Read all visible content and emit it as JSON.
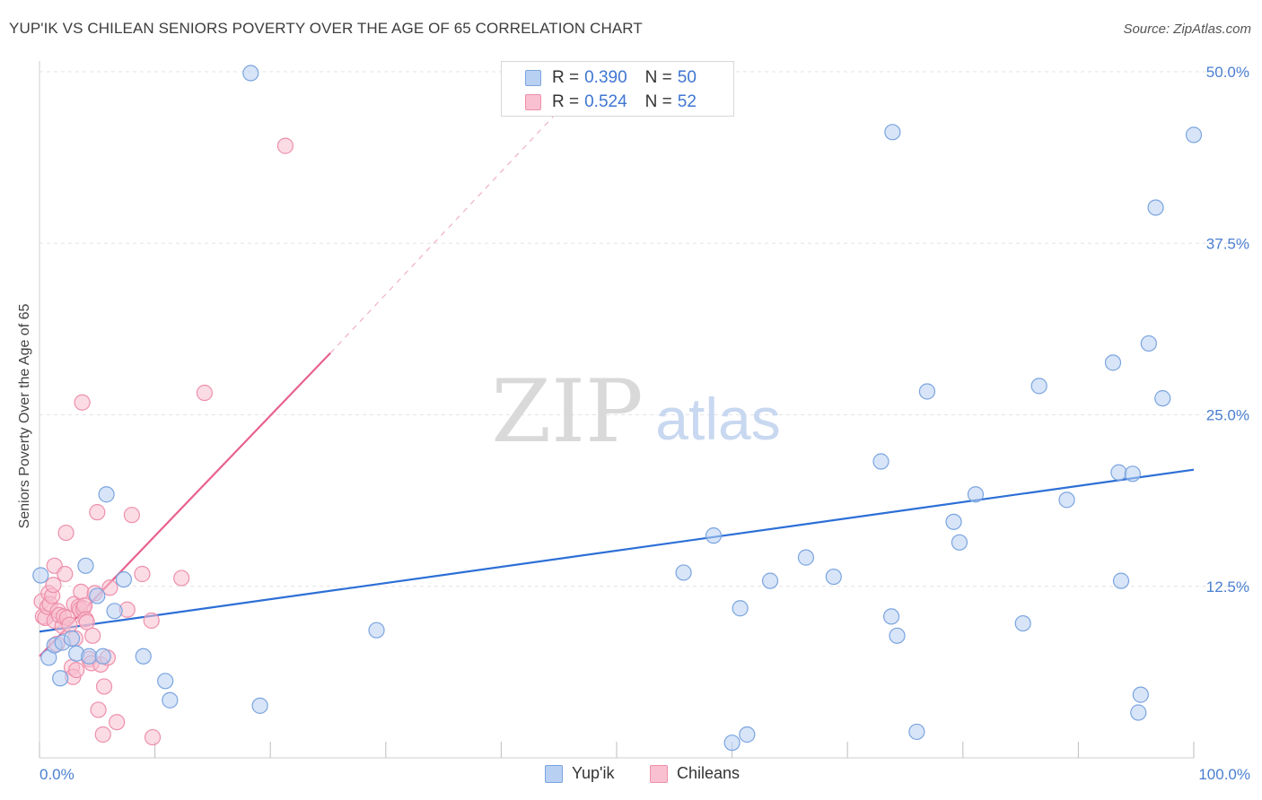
{
  "header": {
    "title": "YUP'IK VS CHILEAN SENIORS POVERTY OVER THE AGE OF 65 CORRELATION CHART",
    "source": "Source: ZipAtlas.com"
  },
  "watermark": {
    "zip": "ZIP",
    "atlas": "atlas"
  },
  "legend": {
    "yupik": {
      "r_label": "R =",
      "r_value": "0.390",
      "n_label": "N =",
      "n_value": "50"
    },
    "chileans": {
      "r_label": "R =",
      "r_value": "0.524",
      "n_label": "N =",
      "n_value": "52"
    }
  },
  "bottom_legend": {
    "yupik": "Yup'ik",
    "chileans": "Chileans"
  },
  "colors": {
    "yupik_fill": "#b8d0f2",
    "yupik_stroke": "#7aa4e0",
    "yupik_line": "#2c6fd6",
    "chile_fill": "#f8c0d0",
    "chile_stroke": "#ee8fab",
    "chile_line": "#e8628e",
    "tick_text": "#4a7fd0",
    "grid": "#e3e3e3"
  },
  "chart_data": {
    "type": "scatter",
    "title": "YUP'IK VS CHILEAN SENIORS POVERTY OVER THE AGE OF 65 CORRELATION CHART",
    "xlabel": "",
    "ylabel": "Seniors Poverty Over the Age of 65",
    "xlim": [
      0,
      100
    ],
    "ylim": [
      0,
      50
    ],
    "x_tick_labels": [
      "0.0%",
      "100.0%"
    ],
    "y_ticks": [
      12.5,
      25.0,
      37.5,
      50.0
    ],
    "y_tick_labels": [
      "12.5%",
      "25.0%",
      "37.5%",
      "50.0%"
    ],
    "grid": true,
    "series": [
      {
        "name": "Yup'ik",
        "points": [
          [
            0.1,
            13.3
          ],
          [
            0.8,
            7.3
          ],
          [
            1.8,
            5.8
          ],
          [
            1.3,
            8.2
          ],
          [
            2.0,
            8.4
          ],
          [
            2.8,
            8.7
          ],
          [
            3.2,
            7.6
          ],
          [
            4.0,
            14.0
          ],
          [
            4.3,
            7.4
          ],
          [
            5.0,
            11.8
          ],
          [
            5.5,
            7.4
          ],
          [
            5.8,
            19.2
          ],
          [
            6.5,
            10.7
          ],
          [
            7.3,
            13.0
          ],
          [
            9.0,
            7.4
          ],
          [
            10.9,
            5.6
          ],
          [
            11.3,
            4.2
          ],
          [
            18.3,
            49.9
          ],
          [
            19.1,
            3.8
          ],
          [
            29.2,
            9.3
          ],
          [
            55.8,
            13.5
          ],
          [
            58.4,
            16.2
          ],
          [
            60.0,
            1.1
          ],
          [
            60.7,
            10.9
          ],
          [
            61.3,
            1.7
          ],
          [
            63.3,
            12.9
          ],
          [
            66.4,
            14.6
          ],
          [
            68.8,
            13.2
          ],
          [
            72.9,
            21.6
          ],
          [
            73.9,
            45.6
          ],
          [
            73.8,
            10.3
          ],
          [
            74.3,
            8.9
          ],
          [
            76.0,
            1.9
          ],
          [
            76.9,
            26.7
          ],
          [
            79.2,
            17.2
          ],
          [
            79.7,
            15.7
          ],
          [
            81.1,
            19.2
          ],
          [
            85.2,
            9.8
          ],
          [
            86.6,
            27.1
          ],
          [
            89.0,
            18.8
          ],
          [
            93.0,
            28.8
          ],
          [
            93.5,
            20.8
          ],
          [
            93.7,
            12.9
          ],
          [
            94.7,
            20.7
          ],
          [
            95.2,
            3.3
          ],
          [
            95.4,
            4.6
          ],
          [
            96.1,
            30.2
          ],
          [
            96.7,
            40.1
          ],
          [
            97.3,
            26.2
          ],
          [
            100.0,
            45.4
          ]
        ],
        "trend": {
          "x": [
            0,
            100
          ],
          "y": [
            9.2,
            21.0
          ]
        }
      },
      {
        "name": "Chileans",
        "points": [
          [
            0.2,
            11.4
          ],
          [
            0.3,
            10.3
          ],
          [
            0.5,
            10.2
          ],
          [
            0.7,
            11.0
          ],
          [
            0.8,
            12.0
          ],
          [
            0.9,
            11.2
          ],
          [
            1.1,
            11.8
          ],
          [
            1.2,
            12.6
          ],
          [
            1.3,
            10.0
          ],
          [
            1.3,
            14.0
          ],
          [
            1.5,
            8.3
          ],
          [
            1.6,
            10.7
          ],
          [
            1.7,
            10.4
          ],
          [
            2.0,
            9.6
          ],
          [
            2.1,
            10.3
          ],
          [
            2.2,
            13.4
          ],
          [
            2.3,
            16.4
          ],
          [
            2.4,
            10.2
          ],
          [
            2.6,
            9.7
          ],
          [
            2.8,
            6.6
          ],
          [
            2.9,
            5.9
          ],
          [
            3.0,
            11.2
          ],
          [
            3.1,
            8.7
          ],
          [
            3.2,
            6.4
          ],
          [
            3.4,
            11.0
          ],
          [
            3.5,
            10.8
          ],
          [
            3.6,
            12.1
          ],
          [
            3.7,
            25.9
          ],
          [
            3.8,
            10.9
          ],
          [
            3.9,
            11.1
          ],
          [
            4.0,
            10.1
          ],
          [
            4.1,
            9.9
          ],
          [
            4.3,
            7.2
          ],
          [
            4.5,
            6.9
          ],
          [
            4.6,
            8.9
          ],
          [
            4.8,
            12.0
          ],
          [
            5.0,
            17.9
          ],
          [
            5.1,
            3.5
          ],
          [
            5.3,
            6.8
          ],
          [
            5.5,
            1.7
          ],
          [
            5.6,
            5.2
          ],
          [
            5.9,
            7.3
          ],
          [
            6.1,
            12.4
          ],
          [
            6.7,
            2.6
          ],
          [
            7.6,
            10.8
          ],
          [
            8.0,
            17.7
          ],
          [
            8.9,
            13.4
          ],
          [
            9.7,
            10.0
          ],
          [
            9.8,
            1.5
          ],
          [
            12.3,
            13.1
          ],
          [
            14.3,
            26.6
          ],
          [
            21.3,
            44.6
          ]
        ],
        "trend": {
          "x": [
            0,
            25.2
          ],
          "y": [
            7.4,
            29.5
          ]
        },
        "trend_extension": {
          "x": [
            25.2,
            44.8
          ],
          "y": [
            29.5,
            47.0
          ]
        }
      }
    ]
  }
}
